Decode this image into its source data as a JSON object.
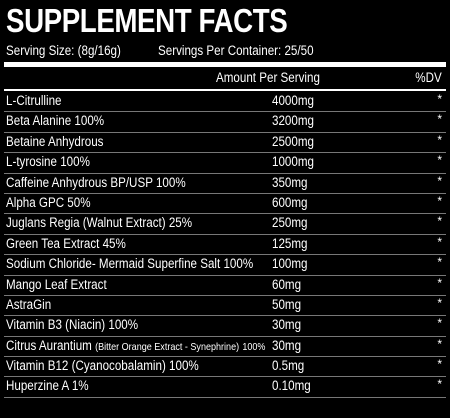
{
  "title": "SUPPLEMENT FACTS",
  "serving_size": "Serving Size: (8g/16g)",
  "servings_per_container": "Servings Per Container: 25/50",
  "header": {
    "amount": "Amount Per Serving",
    "dv": "%DV"
  },
  "ingredients": [
    {
      "name": "L-Citrulline",
      "note": "",
      "name_suffix": "",
      "amount": "4000mg",
      "dv": "*"
    },
    {
      "name": "Beta Alanine 100%",
      "note": "",
      "name_suffix": "",
      "amount": "3200mg",
      "dv": "*"
    },
    {
      "name": "Betaine Anhydrous",
      "note": "",
      "name_suffix": "",
      "amount": "2500mg",
      "dv": "*"
    },
    {
      "name": "L-tyrosine 100%",
      "note": "",
      "name_suffix": "",
      "amount": "1000mg",
      "dv": "*"
    },
    {
      "name": "Caffeine Anhydrous BP/USP 100%",
      "note": "",
      "name_suffix": "",
      "amount": "350mg",
      "dv": "*"
    },
    {
      "name": "Alpha GPC 50%",
      "note": "",
      "name_suffix": "",
      "amount": "600mg",
      "dv": "*"
    },
    {
      "name": "Juglans Regia (Walnut Extract) 25%",
      "note": "",
      "name_suffix": "",
      "amount": "250mg",
      "dv": "*"
    },
    {
      "name": "Green Tea Extract 45%",
      "note": "",
      "name_suffix": "",
      "amount": "125mg",
      "dv": "*"
    },
    {
      "name": "Sodium Chloride- Mermaid Superfine Salt 100%",
      "note": "",
      "name_suffix": "",
      "amount": "100mg",
      "dv": "*"
    },
    {
      "name": "Mango Leaf Extract",
      "note": "",
      "name_suffix": "",
      "amount": "60mg",
      "dv": "*"
    },
    {
      "name": "AstraGin",
      "note": "",
      "name_suffix": "",
      "amount": "50mg",
      "dv": "*"
    },
    {
      "name": "Vitamin B3 (Niacin) 100%",
      "note": "",
      "name_suffix": "",
      "amount": "30mg",
      "dv": "*"
    },
    {
      "name": "Citrus Aurantium",
      "note": "(Bitter Orange Extract - Synephrine)",
      "name_suffix": "100%",
      "amount": "30mg",
      "dv": "*"
    },
    {
      "name": "Vitamin B12 (Cyanocobalamin) 100%",
      "note": "",
      "name_suffix": "",
      "amount": "0.5mg",
      "dv": "*"
    },
    {
      "name": "Huperzine A 1%",
      "note": "",
      "name_suffix": "",
      "amount": "0.10mg",
      "dv": "*"
    }
  ]
}
